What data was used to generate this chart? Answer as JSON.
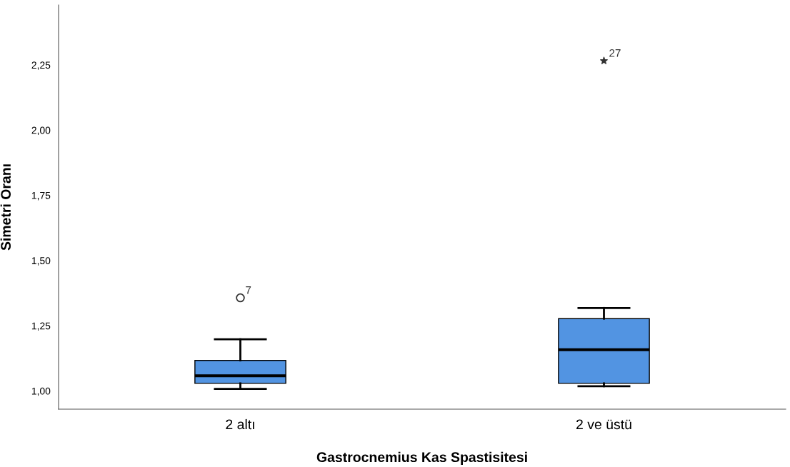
{
  "chart_data": {
    "type": "box",
    "xlabel": "Gastrocnemius Kas Spastisitesi",
    "ylabel": "Simetri Oranı",
    "categories": [
      "2 altı",
      "2 ve üstü"
    ],
    "boxes": [
      {
        "low": 1.008,
        "q1": 1.029,
        "median": 1.058,
        "q3": 1.117,
        "high": 1.198
      },
      {
        "low": 1.018,
        "q1": 1.029,
        "median": 1.158,
        "q3": 1.277,
        "high": 1.318
      }
    ],
    "color": "#5294e2",
    "series": [
      {
        "type": "scatter",
        "marker": "circle",
        "x": [
          "2 altı"
        ],
        "values": [
          1.357
        ],
        "color": "#333333"
      },
      {
        "type": "scatter",
        "marker": "star",
        "x": [
          "2 ve üstü"
        ],
        "values": [
          2.266
        ],
        "color": "#333333"
      }
    ],
    "annotations": [
      {
        "text": "7",
        "x": "2 altı",
        "y": 1.357
      },
      {
        "text": "27",
        "x": "2 ve üstü",
        "y": 2.266
      }
    ],
    "ylim": [
      0.93,
      2.48
    ],
    "yticks": [
      {
        "value": 1.0,
        "label": "1,00"
      },
      {
        "value": 1.25,
        "label": "1,25"
      },
      {
        "value": 1.5,
        "label": "1,50"
      },
      {
        "value": 1.75,
        "label": "1,75"
      },
      {
        "value": 2.0,
        "label": "2,00"
      },
      {
        "value": 2.25,
        "label": "2,25"
      }
    ],
    "grid": false,
    "legend": false
  }
}
